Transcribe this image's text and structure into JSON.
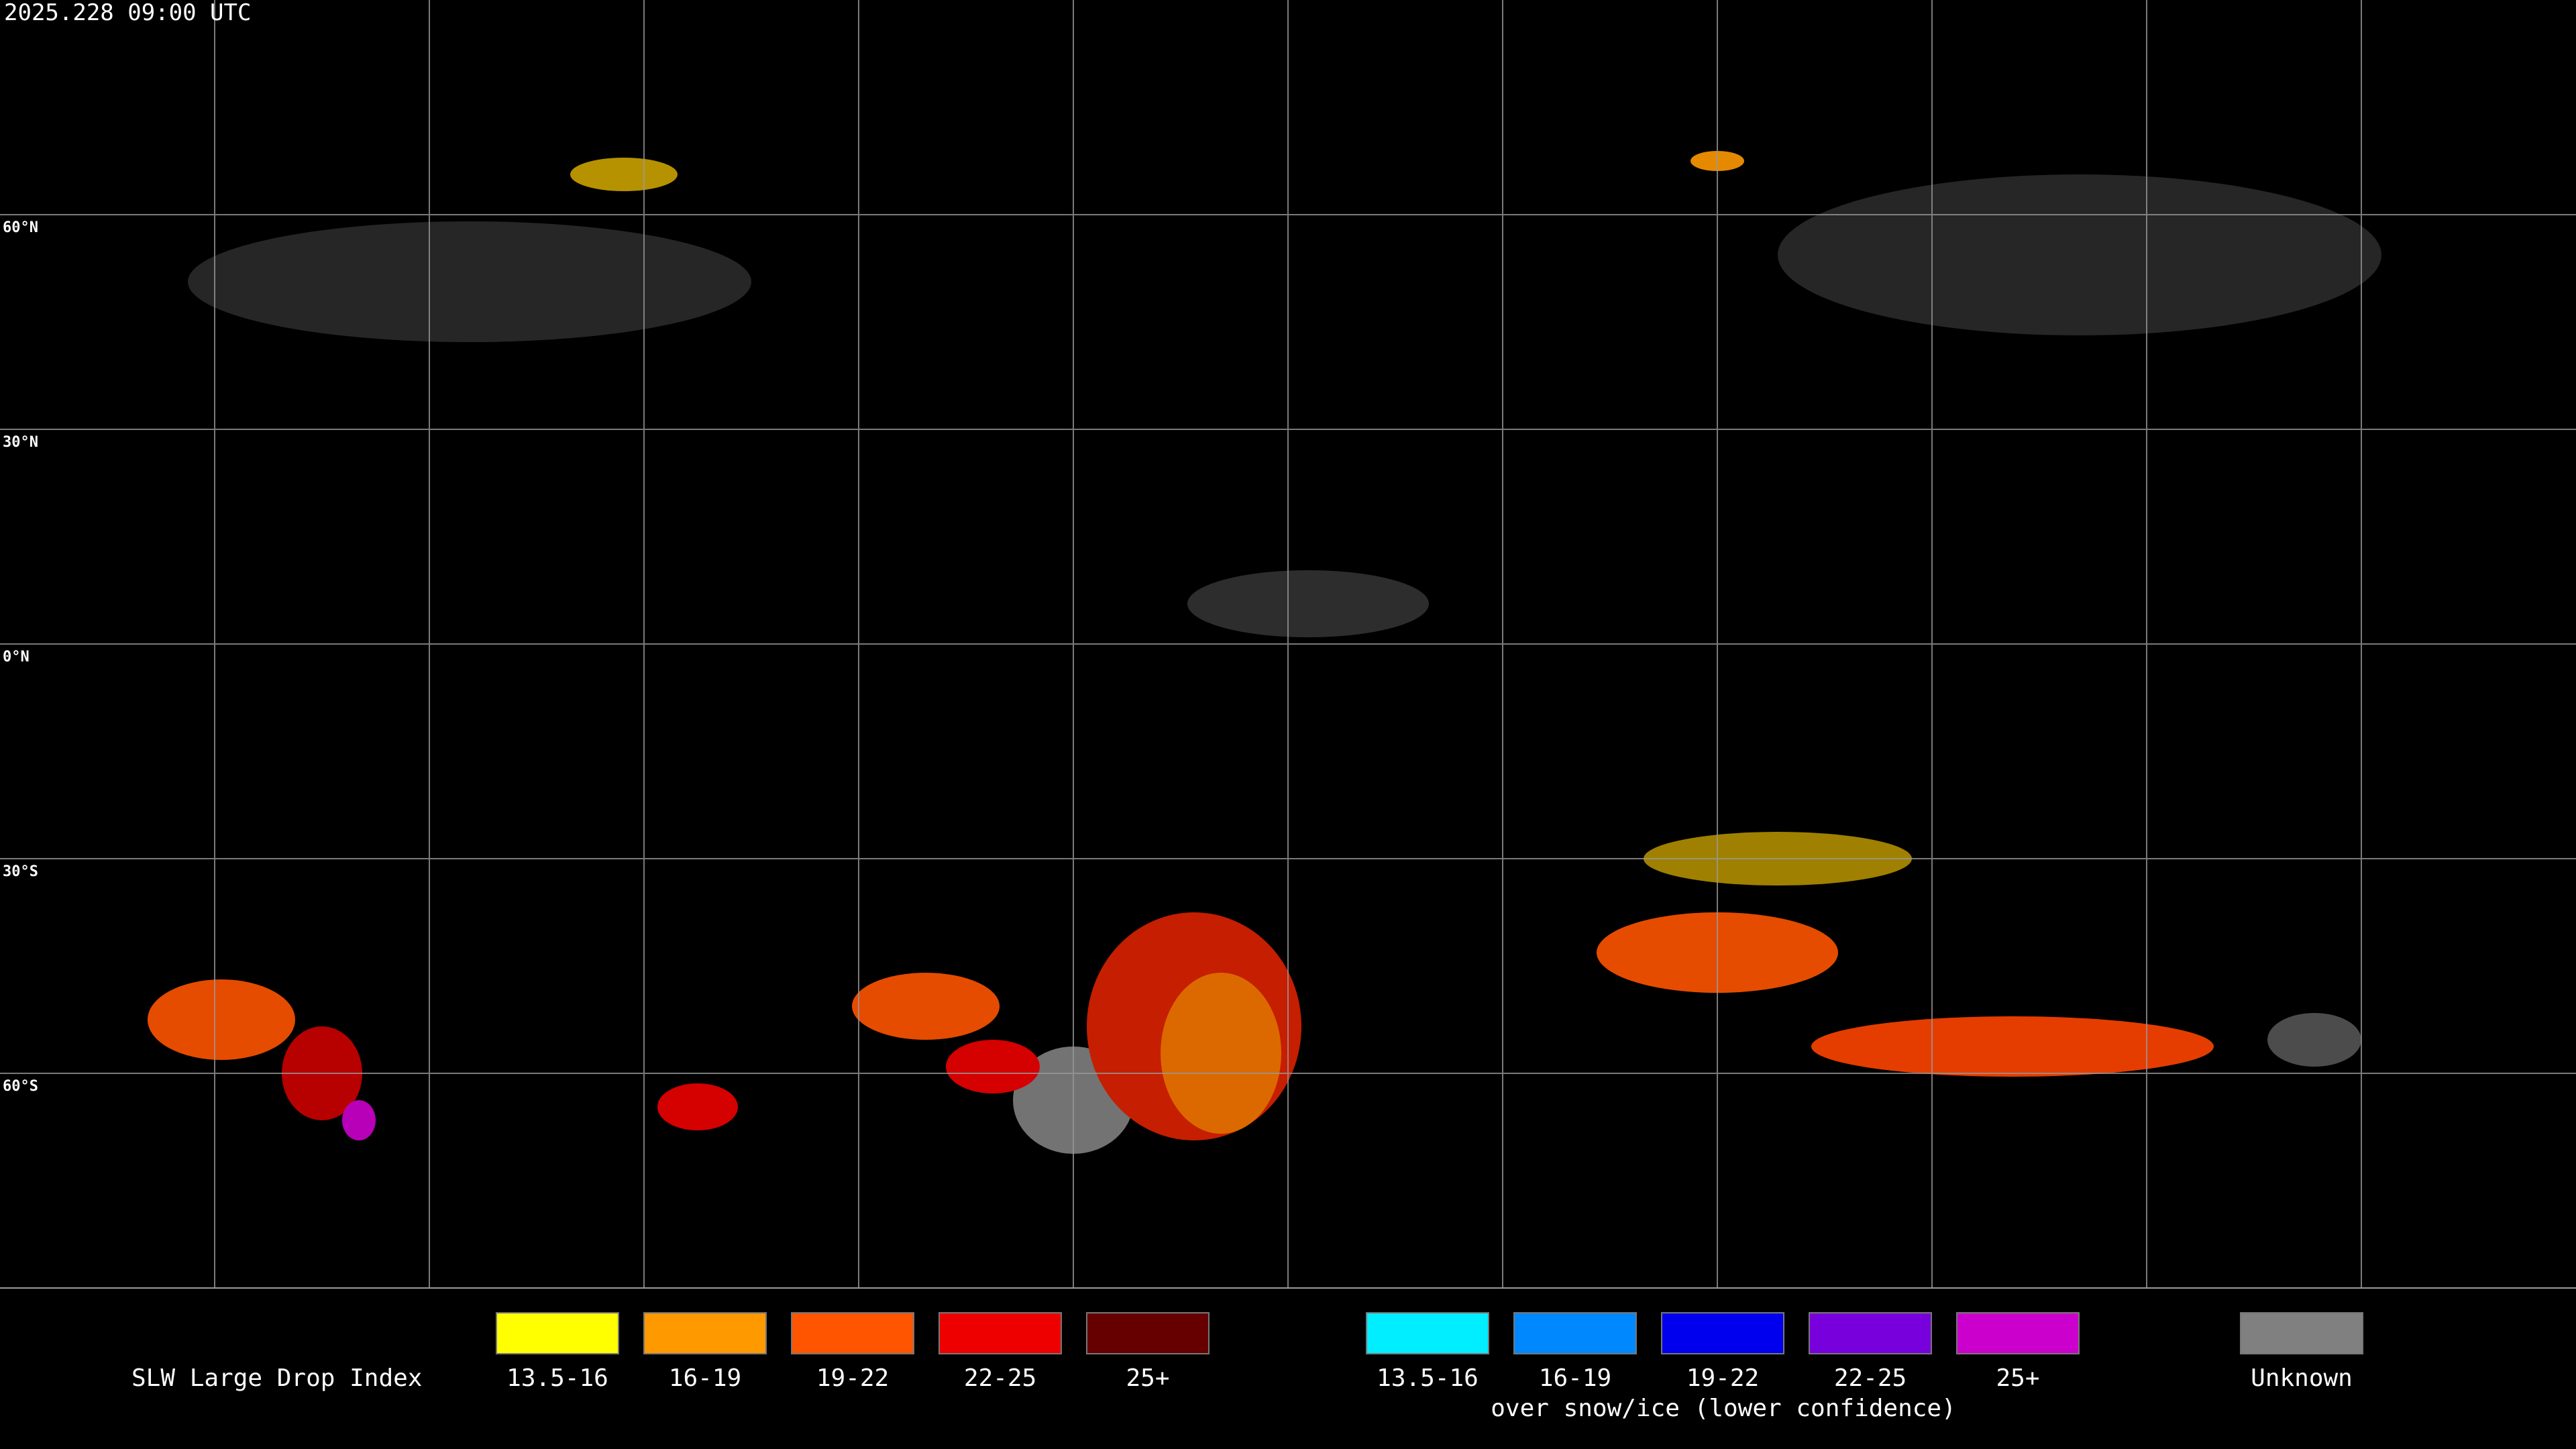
{
  "header": {
    "timestamp": "2025.228 09:00 UTC"
  },
  "grid": {
    "lat_labels": [
      "60°N",
      "30°N",
      "0°N",
      "30°S",
      "60°S"
    ]
  },
  "legend": {
    "title": "SLW Large Drop Index",
    "liquid": [
      {
        "label": "13.5-16",
        "color": "#ffff00"
      },
      {
        "label": "16-19",
        "color": "#ff9900"
      },
      {
        "label": "19-22",
        "color": "#ff5500"
      },
      {
        "label": "22-25",
        "color": "#ee0000"
      },
      {
        "label": "25+",
        "color": "#660000"
      }
    ],
    "snow_ice": [
      {
        "label": "13.5-16",
        "color": "#00eeff"
      },
      {
        "label": "16-19",
        "color": "#0088ff"
      },
      {
        "label": "19-22",
        "color": "#0000ee"
      },
      {
        "label": "22-25",
        "color": "#7700dd"
      },
      {
        "label": "25+",
        "color": "#cc00cc"
      }
    ],
    "snow_ice_caption": "over snow/ice (lower confidence)",
    "unknown": {
      "label": "Unknown",
      "color": "#808080"
    }
  }
}
